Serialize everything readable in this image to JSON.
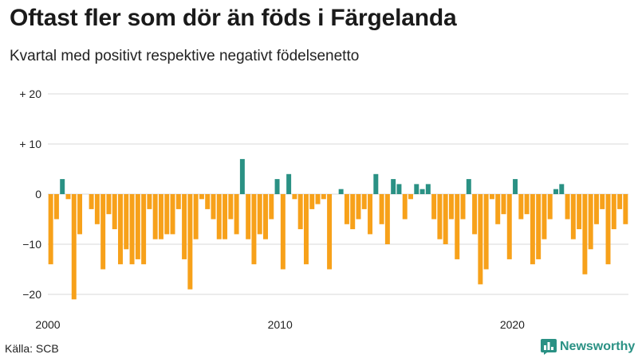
{
  "chart_data": {
    "type": "bar",
    "title": "Oftast fler som dör än föds i Färgelanda",
    "subtitle": "Kvartal med positivt respektive negativt födelsenetto",
    "source": "Källa: SCB",
    "brand": "Newsworthy",
    "x_start_year": 2000,
    "periods_per_year": 4,
    "ylim": [
      -22,
      21
    ],
    "y_ticks": [
      {
        "value": 20,
        "label": "+ 20"
      },
      {
        "value": 10,
        "label": "+ 10"
      },
      {
        "value": 0,
        "label": "0"
      },
      {
        "value": -10,
        "label": "−10"
      },
      {
        "value": -20,
        "label": "−20"
      }
    ],
    "x_ticks": [
      {
        "index": 0,
        "label": "2000"
      },
      {
        "index": 40,
        "label": "2010"
      },
      {
        "index": 80,
        "label": "2020"
      }
    ],
    "colors": {
      "positive": "#2a9184",
      "negative": "#f7a11a",
      "grid": "#d9d9d9"
    },
    "values": [
      -14,
      -5,
      3,
      -1,
      -21,
      -8,
      0,
      -3,
      -6,
      -15,
      -4,
      -7,
      -14,
      -11,
      -14,
      -13,
      -14,
      -3,
      -9,
      -9,
      -8,
      -8,
      -3,
      -13,
      -19,
      -9,
      -1,
      -3,
      -5,
      -9,
      -9,
      -5,
      -8,
      7,
      -9,
      -14,
      -8,
      -9,
      -5,
      3,
      -15,
      4,
      -1,
      -7,
      -14,
      -3,
      -2,
      -1,
      -15,
      0,
      1,
      -6,
      -7,
      -5,
      -3,
      -8,
      4,
      -6,
      -10,
      3,
      2,
      -5,
      -1,
      2,
      1,
      2,
      -5,
      -9,
      -10,
      -5,
      -13,
      -5,
      3,
      -8,
      -18,
      -15,
      -1,
      -6,
      -4,
      -13,
      3,
      -5,
      -4,
      -14,
      -13,
      -9,
      -5,
      1,
      2,
      -5,
      -9,
      -7,
      -16,
      -11,
      -6,
      -3,
      -14,
      -7,
      -3,
      -6
    ]
  }
}
